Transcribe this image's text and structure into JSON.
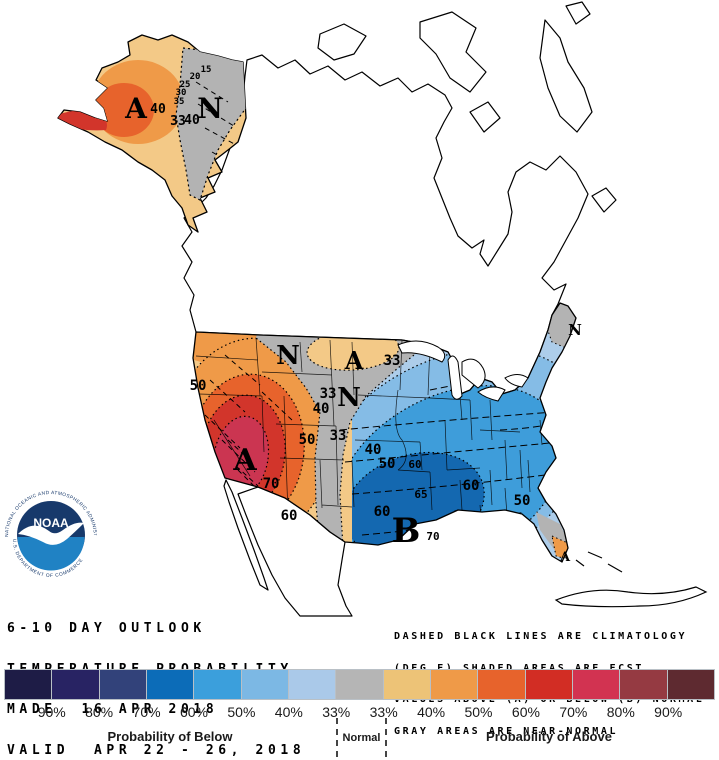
{
  "logo": {
    "org": "NOAA",
    "ring_top": "NATIONAL OCEANIC AND ATMOSPHERIC ADMINISTRATION",
    "ring_bottom": "U.S. DEPARTMENT OF COMMERCE"
  },
  "title_block": {
    "lines": [
      "6-10 DAY OUTLOOK",
      "TEMPERATURE PROBABILITY",
      "MADE  16 APR 2018",
      "VALID  APR 22 - 26, 2018"
    ]
  },
  "note_block": {
    "lines": [
      "DASHED BLACK LINES ARE CLIMATOLOGY",
      "(DEG F) SHADED AREAS ARE FCST",
      "VALUES ABOVE (A) OR BELOW (B) NORMAL",
      "GRAY AREAS ARE NEAR-NORMAL"
    ]
  },
  "map": {
    "regions": {
      "alaska_above": "A",
      "alaska_near": "N",
      "west_above": "A",
      "montana_near": "N",
      "dakota_above": "A",
      "plains_near": "N",
      "southeast_below": "B",
      "maine_near": "N",
      "florida_above": "A"
    },
    "contours": {
      "ak_15": "15",
      "ak_20": "20",
      "ak_25": "25",
      "ak_30": "30",
      "ak_35": "35",
      "ak_40_inner": "40",
      "ak_33": "33",
      "ak_40_outer": "40",
      "w_coast_50": "50",
      "w_33": "33",
      "w_40": "40",
      "w_50": "50",
      "w_70": "70",
      "w_60": "60",
      "nd_33": "33",
      "e_33": "33",
      "e_40": "40",
      "e_50_nw": "50",
      "e_60_dash": "60",
      "e_65_dash": "65",
      "e_70_dash": "70",
      "e_60_w": "60",
      "e_60_e": "60",
      "e_50_se": "50"
    }
  },
  "legend": {
    "cells": [
      "#1e1c46",
      "#282363",
      "#32427a",
      "#0c6cb8",
      "#3b9fdc",
      "#7cb8e4",
      "#aac9e9",
      "#b5b5b5",
      "#edc377",
      "#ef9a48",
      "#e7632c",
      "#d22d24",
      "#d23351",
      "#953a42",
      "#5e2a30"
    ],
    "ticks": [
      "90%",
      "80%",
      "70%",
      "60%",
      "50%",
      "40%",
      "33%",
      "33%",
      "40%",
      "50%",
      "60%",
      "70%",
      "80%",
      "90%"
    ],
    "below_label": "Probability of Below",
    "normal_label": "Normal",
    "above_label": "Probability of Above"
  },
  "colors": {
    "above_accent": "#e7632c",
    "below_accent": "#1468b0",
    "near_normal": "#b3b3b3"
  }
}
